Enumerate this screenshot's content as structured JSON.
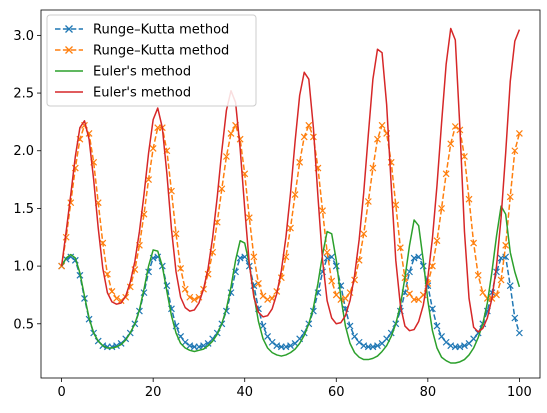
{
  "chart_data": {
    "type": "line",
    "title": "",
    "xlabel": "",
    "ylabel": "",
    "xlim": [
      -4.5,
      104.5
    ],
    "ylim": [
      0.03,
      3.22
    ],
    "x_ticks": [
      0,
      20,
      40,
      60,
      80,
      100
    ],
    "y_ticks": [
      0.5,
      1.0,
      1.5,
      2.0,
      2.5,
      3.0
    ],
    "x_tick_labels": [
      "0",
      "20",
      "40",
      "60",
      "80",
      "100"
    ],
    "y_tick_labels": [
      "0.5",
      "1.0",
      "1.5",
      "2.0",
      "2.5",
      "3.0"
    ],
    "grid": false,
    "legend_position": "top-left",
    "series": [
      {
        "name": "Runge–Kutta method",
        "style": "dashed-x",
        "color": "#1f77b4",
        "x": [
          0,
          1,
          2,
          3,
          4,
          5,
          6,
          7,
          8,
          9,
          10,
          11,
          12,
          13,
          14,
          15,
          16,
          17,
          18,
          19,
          20,
          21,
          22,
          23,
          24,
          25,
          26,
          27,
          28,
          29,
          30,
          31,
          32,
          33,
          34,
          35,
          36,
          37,
          38,
          39,
          40,
          41,
          42,
          43,
          44,
          45,
          46,
          47,
          48,
          49,
          50,
          51,
          52,
          53,
          54,
          55,
          56,
          57,
          58,
          59,
          60,
          61,
          62,
          63,
          64,
          65,
          66,
          67,
          68,
          69,
          70,
          71,
          72,
          73,
          74,
          75,
          76,
          77,
          78,
          79,
          80,
          81,
          82,
          83,
          84,
          85,
          86,
          87,
          88,
          89,
          90,
          91,
          92,
          93,
          94,
          95,
          96,
          97,
          98,
          99,
          100
        ],
        "y": [
          1.0,
          1.06,
          1.08,
          1.05,
          0.92,
          0.72,
          0.54,
          0.42,
          0.35,
          0.31,
          0.3,
          0.3,
          0.31,
          0.33,
          0.37,
          0.42,
          0.5,
          0.61,
          0.77,
          0.95,
          1.07,
          1.08,
          1.0,
          0.83,
          0.63,
          0.48,
          0.39,
          0.34,
          0.31,
          0.3,
          0.3,
          0.31,
          0.33,
          0.37,
          0.42,
          0.5,
          0.61,
          0.77,
          0.95,
          1.07,
          1.08,
          1.0,
          0.83,
          0.63,
          0.48,
          0.39,
          0.34,
          0.31,
          0.3,
          0.3,
          0.31,
          0.33,
          0.37,
          0.42,
          0.5,
          0.61,
          0.77,
          0.95,
          1.07,
          1.08,
          1.0,
          0.83,
          0.63,
          0.48,
          0.39,
          0.34,
          0.31,
          0.3,
          0.3,
          0.31,
          0.33,
          0.37,
          0.42,
          0.5,
          0.61,
          0.77,
          0.95,
          1.07,
          1.08,
          1.0,
          0.83,
          0.63,
          0.48,
          0.39,
          0.34,
          0.31,
          0.3,
          0.3,
          0.31,
          0.33,
          0.37,
          0.42,
          0.5,
          0.61,
          0.77,
          0.95,
          1.07,
          1.08,
          0.83,
          0.55,
          0.42
        ]
      },
      {
        "name": "Runge–Kutta method",
        "style": "dashed-x",
        "color": "#ff7f0e",
        "x": [
          0,
          1,
          2,
          3,
          4,
          5,
          6,
          7,
          8,
          9,
          10,
          11,
          12,
          13,
          14,
          15,
          16,
          17,
          18,
          19,
          20,
          21,
          22,
          23,
          24,
          25,
          26,
          27,
          28,
          29,
          30,
          31,
          32,
          33,
          34,
          35,
          36,
          37,
          38,
          39,
          40,
          41,
          42,
          43,
          44,
          45,
          46,
          47,
          48,
          49,
          50,
          51,
          52,
          53,
          54,
          55,
          56,
          57,
          58,
          59,
          60,
          61,
          62,
          63,
          64,
          65,
          66,
          67,
          68,
          69,
          70,
          71,
          72,
          73,
          74,
          75,
          76,
          77,
          78,
          79,
          80,
          81,
          82,
          83,
          84,
          85,
          86,
          87,
          88,
          89,
          90,
          91,
          92,
          93,
          94,
          95,
          96,
          97,
          98,
          99,
          100
        ],
        "y": [
          1.0,
          1.25,
          1.55,
          1.85,
          2.1,
          2.22,
          2.15,
          1.9,
          1.55,
          1.2,
          0.93,
          0.78,
          0.72,
          0.7,
          0.73,
          0.82,
          0.97,
          1.18,
          1.45,
          1.75,
          2.02,
          2.2,
          2.2,
          2.0,
          1.65,
          1.28,
          0.98,
          0.8,
          0.73,
          0.71,
          0.73,
          0.8,
          0.93,
          1.12,
          1.38,
          1.67,
          1.95,
          2.15,
          2.22,
          2.1,
          1.8,
          1.42,
          1.08,
          0.85,
          0.74,
          0.71,
          0.72,
          0.78,
          0.9,
          1.08,
          1.33,
          1.62,
          1.9,
          2.12,
          2.22,
          2.12,
          1.85,
          1.48,
          1.12,
          0.87,
          0.75,
          0.71,
          0.72,
          0.77,
          0.88,
          1.05,
          1.28,
          1.56,
          1.85,
          2.1,
          2.22,
          2.15,
          1.9,
          1.53,
          1.16,
          0.9,
          0.76,
          0.71,
          0.71,
          0.75,
          0.85,
          1.0,
          1.22,
          1.5,
          1.8,
          2.06,
          2.21,
          2.18,
          1.95,
          1.58,
          1.2,
          0.92,
          0.77,
          0.72,
          0.72,
          0.75,
          0.88,
          1.18,
          1.6,
          2.0,
          2.15
        ]
      },
      {
        "name": "Euler's method",
        "style": "solid",
        "color": "#2ca02c",
        "x": [
          0,
          1,
          2,
          3,
          4,
          5,
          6,
          7,
          8,
          9,
          10,
          11,
          12,
          13,
          14,
          15,
          16,
          17,
          18,
          19,
          20,
          21,
          22,
          23,
          24,
          25,
          26,
          27,
          28,
          29,
          30,
          31,
          32,
          33,
          34,
          35,
          36,
          37,
          38,
          39,
          40,
          41,
          42,
          43,
          44,
          45,
          46,
          47,
          48,
          49,
          50,
          51,
          52,
          53,
          54,
          55,
          56,
          57,
          58,
          59,
          60,
          61,
          62,
          63,
          64,
          65,
          66,
          67,
          68,
          69,
          70,
          71,
          72,
          73,
          74,
          75,
          76,
          77,
          78,
          79,
          80,
          81,
          82,
          83,
          84,
          85,
          86,
          87,
          88,
          89,
          90,
          91,
          92,
          93,
          94,
          95,
          96,
          97,
          98,
          99,
          100
        ],
        "y": [
          1.0,
          1.07,
          1.1,
          1.07,
          0.94,
          0.74,
          0.55,
          0.42,
          0.35,
          0.31,
          0.29,
          0.29,
          0.3,
          0.32,
          0.36,
          0.42,
          0.5,
          0.62,
          0.8,
          1.0,
          1.14,
          1.13,
          1.0,
          0.78,
          0.57,
          0.42,
          0.33,
          0.29,
          0.27,
          0.26,
          0.27,
          0.28,
          0.31,
          0.35,
          0.41,
          0.5,
          0.63,
          0.82,
          1.05,
          1.22,
          1.2,
          1.02,
          0.75,
          0.52,
          0.37,
          0.29,
          0.25,
          0.23,
          0.22,
          0.23,
          0.25,
          0.28,
          0.33,
          0.4,
          0.5,
          0.64,
          0.85,
          1.1,
          1.3,
          1.28,
          1.05,
          0.73,
          0.48,
          0.33,
          0.25,
          0.21,
          0.19,
          0.19,
          0.2,
          0.22,
          0.26,
          0.31,
          0.39,
          0.5,
          0.66,
          0.9,
          1.18,
          1.4,
          1.35,
          1.05,
          0.7,
          0.44,
          0.29,
          0.21,
          0.18,
          0.16,
          0.16,
          0.17,
          0.19,
          0.23,
          0.29,
          0.38,
          0.5,
          0.68,
          0.95,
          1.26,
          1.52,
          1.45,
          1.12,
          0.95,
          0.82
        ]
      },
      {
        "name": "Euler's method",
        "style": "solid",
        "color": "#d62728",
        "x": [
          0,
          1,
          2,
          3,
          4,
          5,
          6,
          7,
          8,
          9,
          10,
          11,
          12,
          13,
          14,
          15,
          16,
          17,
          18,
          19,
          20,
          21,
          22,
          23,
          24,
          25,
          26,
          27,
          28,
          29,
          30,
          31,
          32,
          33,
          34,
          35,
          36,
          37,
          38,
          39,
          40,
          41,
          42,
          43,
          44,
          45,
          46,
          47,
          48,
          49,
          50,
          51,
          52,
          53,
          54,
          55,
          56,
          57,
          58,
          59,
          60,
          61,
          62,
          63,
          64,
          65,
          66,
          67,
          68,
          69,
          70,
          71,
          72,
          73,
          74,
          75,
          76,
          77,
          78,
          79,
          80,
          81,
          82,
          83,
          84,
          85,
          86,
          87,
          88,
          89,
          90,
          91,
          92,
          93,
          94,
          95,
          96,
          97,
          98,
          99,
          100
        ],
        "y": [
          1.0,
          1.3,
          1.62,
          1.95,
          2.2,
          2.26,
          2.1,
          1.75,
          1.33,
          0.98,
          0.77,
          0.69,
          0.67,
          0.68,
          0.74,
          0.86,
          1.04,
          1.3,
          1.62,
          1.98,
          2.27,
          2.37,
          2.2,
          1.8,
          1.32,
          0.95,
          0.73,
          0.64,
          0.61,
          0.62,
          0.68,
          0.8,
          0.98,
          1.25,
          1.6,
          2.0,
          2.35,
          2.52,
          2.42,
          2.02,
          1.5,
          1.02,
          0.73,
          0.6,
          0.56,
          0.57,
          0.63,
          0.76,
          0.96,
          1.25,
          1.63,
          2.08,
          2.48,
          2.68,
          2.62,
          2.2,
          1.6,
          1.05,
          0.7,
          0.55,
          0.5,
          0.51,
          0.57,
          0.7,
          0.92,
          1.23,
          1.64,
          2.14,
          2.62,
          2.88,
          2.85,
          2.4,
          1.7,
          1.05,
          0.66,
          0.48,
          0.44,
          0.45,
          0.52,
          0.66,
          0.9,
          1.24,
          1.7,
          2.24,
          2.75,
          3.06,
          2.96,
          2.2,
          1.3,
          0.72,
          0.47,
          0.43,
          0.46,
          0.55,
          0.72,
          1.0,
          1.42,
          1.98,
          2.6,
          2.95,
          3.05
        ]
      }
    ]
  }
}
